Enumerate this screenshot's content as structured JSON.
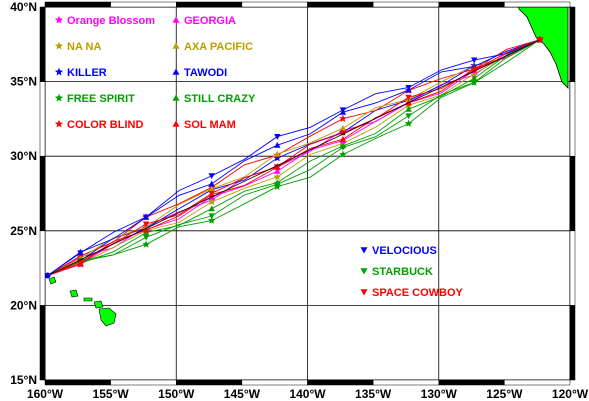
{
  "map": {
    "lat_ticks": [
      "40°N",
      "35°N",
      "30°N",
      "25°N",
      "20°N",
      "15°N"
    ],
    "lon_ticks": [
      "160°W",
      "155°W",
      "150°W",
      "145°W",
      "140°W",
      "135°W",
      "130°W",
      "125°W",
      "120°W"
    ],
    "lat_range": [
      15,
      40
    ],
    "lon_range": [
      -160,
      -120
    ],
    "land_color": "#00ff00",
    "start_point": {
      "lon": -159.8,
      "lat": 22.0
    },
    "end_point": {
      "lon": -122.3,
      "lat": 37.8
    },
    "legend_left": [
      {
        "name": "Orange Blossom",
        "color": "#ff00ff",
        "symbol": "star"
      },
      {
        "name": "NA NA",
        "color": "#b8a000",
        "symbol": "star"
      },
      {
        "name": "KILLER",
        "color": "#0000ff",
        "symbol": "star"
      },
      {
        "name": "FREE SPIRIT",
        "color": "#00a000",
        "symbol": "star"
      },
      {
        "name": "COLOR BLIND",
        "color": "#ff0000",
        "symbol": "star"
      }
    ],
    "legend_mid": [
      {
        "name": "GEORGIA",
        "color": "#ff00ff",
        "symbol": "triangle-up"
      },
      {
        "name": "AXA PACIFIC",
        "color": "#b8a000",
        "symbol": "triangle-up"
      },
      {
        "name": "TAWODI",
        "color": "#0000ff",
        "symbol": "triangle-up"
      },
      {
        "name": "STILL CRAZY",
        "color": "#00a000",
        "symbol": "triangle-up"
      },
      {
        "name": "SOL MAM",
        "color": "#ff0000",
        "symbol": "triangle-up"
      }
    ],
    "legend_right": [
      {
        "name": "VELOCIOUS",
        "color": "#0000ff",
        "symbol": "triangle-down"
      },
      {
        "name": "STARBUCK",
        "color": "#00a000",
        "symbol": "triangle-down"
      },
      {
        "name": "SPACE COWBOY",
        "color": "#ff0000",
        "symbol": "triangle-down"
      }
    ]
  }
}
